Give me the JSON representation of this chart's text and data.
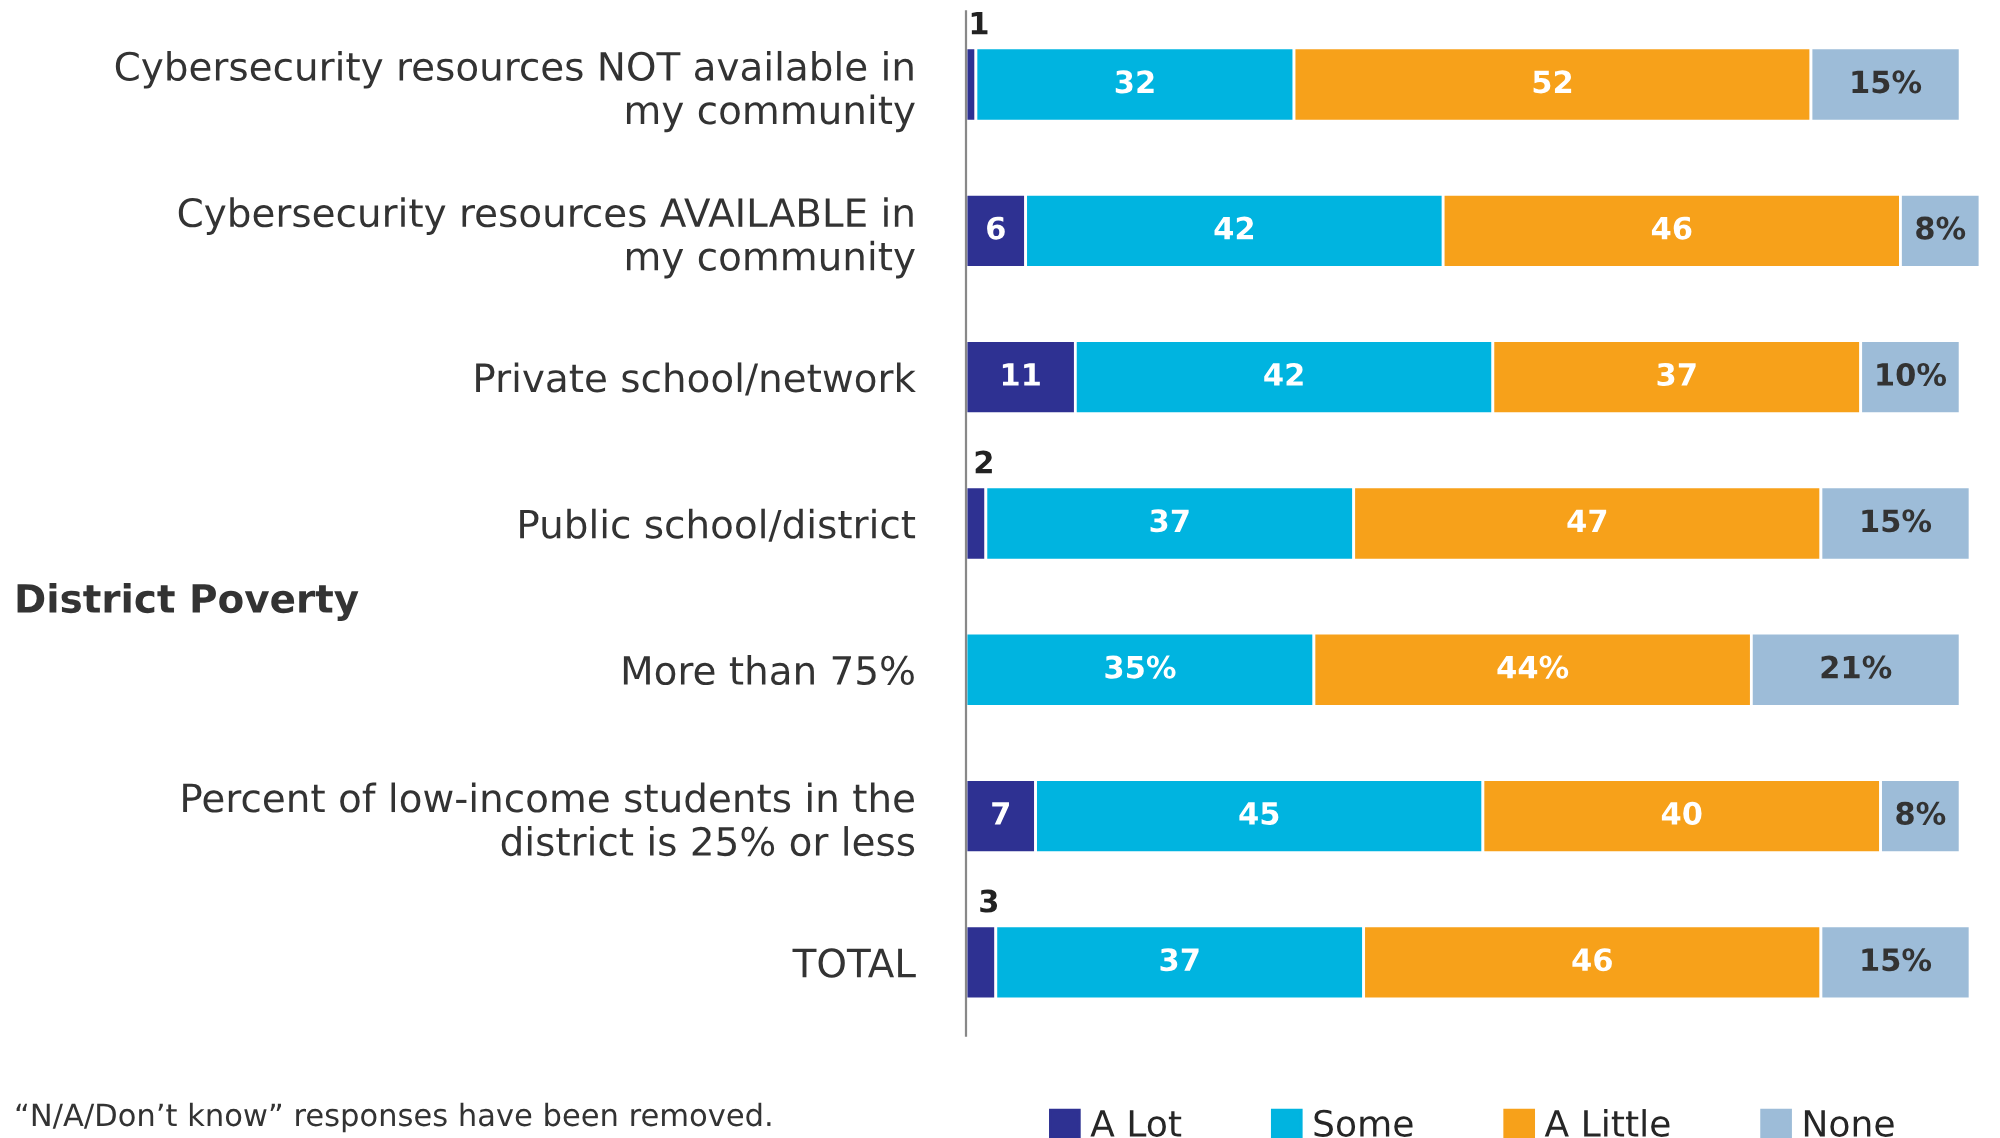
{
  "chart_data": {
    "type": "bar",
    "orientation": "horizontal",
    "stacked": true,
    "categories": [
      "Cybersecurity resources NOT available in\nmy community",
      "Cybersecurity resources AVAILABLE in\nmy community",
      "Private school/network",
      "Public school/district",
      "More than 75%",
      "Percent of low-income students in the\ndistrict is 25% or less",
      "TOTAL"
    ],
    "series": [
      {
        "name": "A Lot",
        "color": "#2e3192",
        "values": [
          1,
          6,
          11,
          2,
          null,
          7,
          3
        ],
        "value_labels": [
          "1",
          "6",
          "11",
          "2",
          null,
          "7",
          "3"
        ]
      },
      {
        "name": "Some",
        "color": "#00b4e0",
        "values": [
          32,
          42,
          42,
          37,
          35,
          45,
          37
        ],
        "value_labels": [
          "32",
          "42",
          "42",
          "37",
          "35%",
          "45",
          "37"
        ]
      },
      {
        "name": "A Little",
        "color": "#f7a11a",
        "values": [
          52,
          46,
          37,
          47,
          44,
          40,
          46
        ],
        "value_labels": [
          "52",
          "46",
          "37",
          "47",
          "44%",
          "40",
          "46"
        ]
      },
      {
        "name": "None",
        "color": "#9dbcd8",
        "values": [
          15,
          8,
          10,
          15,
          21,
          8,
          15
        ],
        "value_labels": [
          "15%",
          "8%",
          "10%",
          "15%",
          "21%",
          "8%",
          "15%"
        ]
      }
    ],
    "xlim": [
      0,
      102
    ],
    "tick_labels": "y",
    "grid": false,
    "legend": "bottom",
    "annotations": [
      "District Poverty",
      "“N/A/Don’t know” responses have been removed."
    ]
  }
}
